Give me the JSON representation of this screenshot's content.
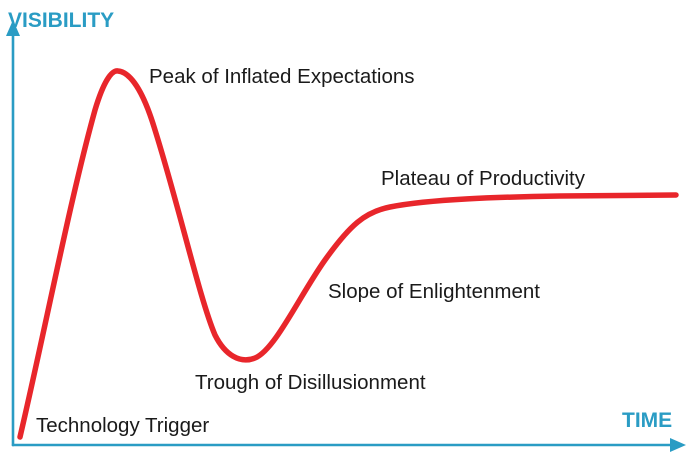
{
  "axes": {
    "y_label": "VISIBILITY",
    "x_label": "TIME",
    "color": "#2a9cc4"
  },
  "curve": {
    "color": "#e8262b"
  },
  "phases": [
    "Technology Trigger",
    "Peak of Inflated Expectations",
    "Trough of Disillusionment",
    "Slope of Enlightenment",
    "Plateau of Productivity"
  ]
}
